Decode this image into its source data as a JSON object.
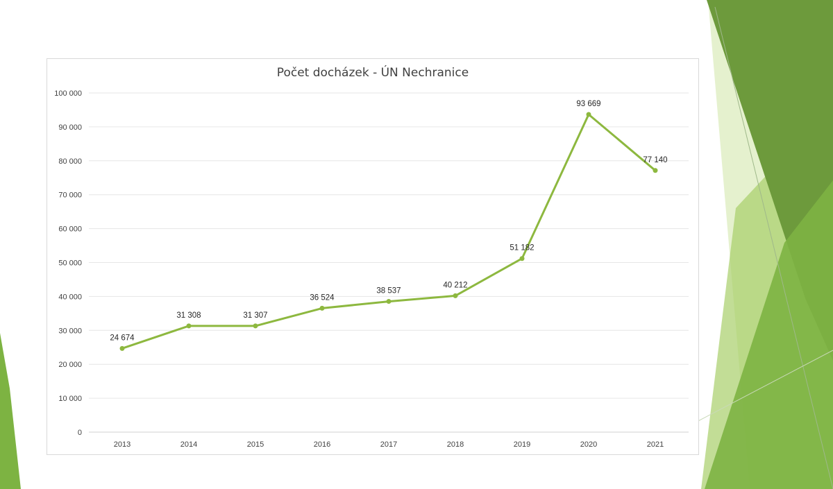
{
  "chart_data": {
    "type": "line",
    "title": "Počet docházek - ÚN Nechranice",
    "xlabel": "",
    "ylabel": "",
    "categories": [
      "2013",
      "2014",
      "2015",
      "2016",
      "2017",
      "2018",
      "2019",
      "2020",
      "2021"
    ],
    "series": [
      {
        "values": [
          24674,
          31308,
          31307,
          36524,
          38537,
          40212,
          51182,
          93669,
          77140
        ]
      }
    ],
    "data_labels": [
      "24 674",
      "31 308",
      "31 307",
      "36 524",
      "38 537",
      "40 212",
      "51 182",
      "93 669",
      "77 140"
    ],
    "ylim": [
      0,
      100000
    ],
    "yticks": [
      0,
      10000,
      20000,
      30000,
      40000,
      50000,
      60000,
      70000,
      80000,
      90000,
      100000
    ],
    "ytick_labels": [
      "0",
      "10 000",
      "20 000",
      "30 000",
      "40 000",
      "50 000",
      "60 000",
      "70 000",
      "80 000",
      "90 000",
      "100 000"
    ],
    "grid": true,
    "legend": "none",
    "colors": {
      "line": "#8db83f",
      "marker": "#8db83f",
      "grid": "#e6e6e6"
    }
  },
  "theme": {
    "decoration": "green-triangles",
    "colors": [
      "#6d9a3c",
      "#7db342",
      "#a8cf6a",
      "#cfe5a6"
    ]
  }
}
